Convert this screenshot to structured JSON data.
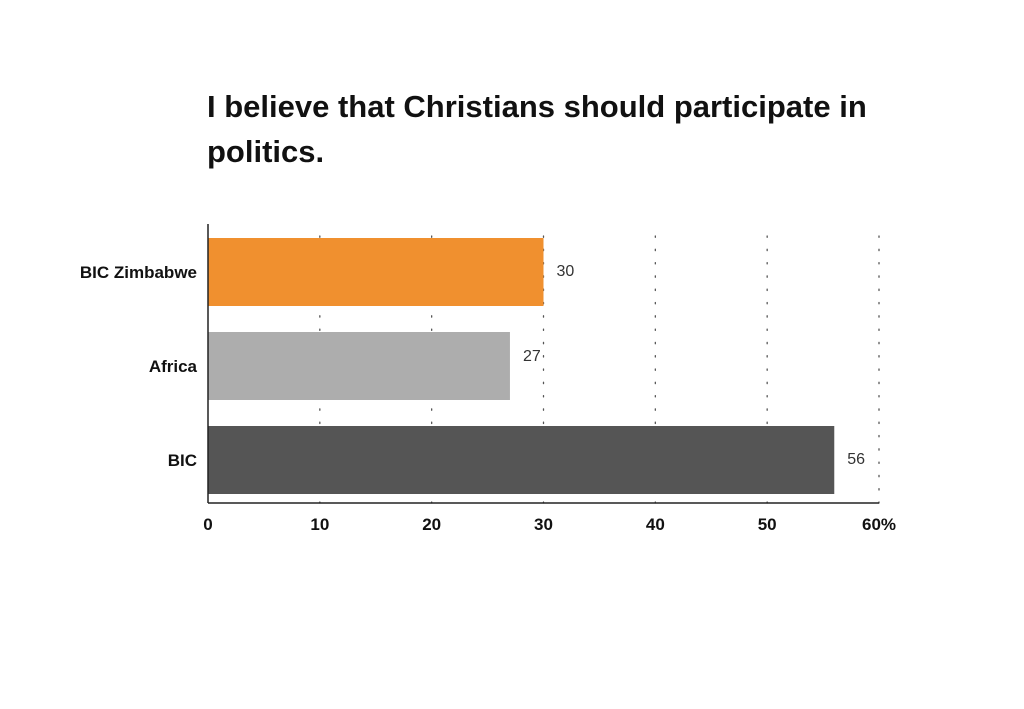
{
  "chart_data": {
    "type": "bar",
    "orientation": "horizontal",
    "title": "I believe that Christians should participate in politics.",
    "categories": [
      "BIC Zimbabwe",
      "Africa",
      "BIC"
    ],
    "values": [
      30,
      27,
      56
    ],
    "value_labels": [
      "30",
      "27",
      "56"
    ],
    "colors": [
      "#F0902F",
      "#ADADAD",
      "#555555"
    ],
    "xlim": [
      0,
      60
    ],
    "x_ticks": [
      0,
      10,
      20,
      30,
      40,
      50,
      60
    ],
    "x_tick_labels": [
      "0",
      "10",
      "20",
      "30",
      "40",
      "50",
      "60%"
    ],
    "xlabel": "",
    "ylabel": "",
    "grid": "vertical dotted",
    "legend": "none"
  }
}
